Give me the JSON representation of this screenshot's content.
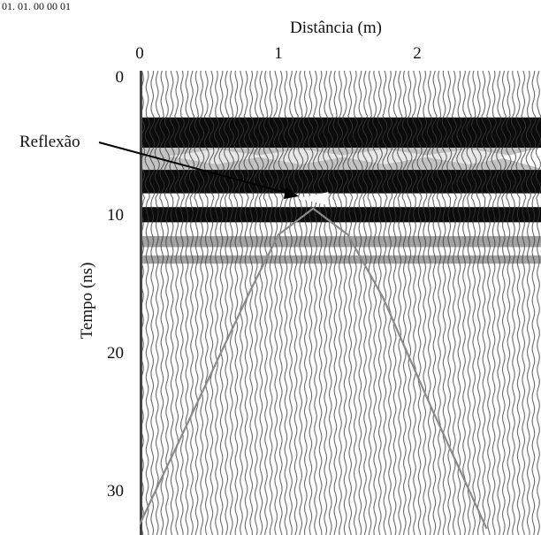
{
  "chart_data": {
    "type": "radargram",
    "xlabel": "Distância (m)",
    "ylabel": "Tempo (ns)",
    "x_ticks": [
      0,
      1,
      2
    ],
    "y_ticks": [
      0,
      10,
      20,
      30
    ],
    "xlim": [
      0,
      2.9
    ],
    "ylim": [
      0,
      33
    ],
    "x_axis_position": "top",
    "reflection_hyperbola": {
      "apex_x_m": 1.25,
      "apex_t_ns": 9.6,
      "points": [
        {
          "x": 0.0,
          "t": 32.5
        },
        {
          "x": 0.4,
          "t": 24.0
        },
        {
          "x": 0.8,
          "t": 15.5
        },
        {
          "x": 1.0,
          "t": 11.5
        },
        {
          "x": 1.25,
          "t": 9.6
        },
        {
          "x": 1.5,
          "t": 11.5
        },
        {
          "x": 1.75,
          "t": 16.0
        },
        {
          "x": 2.1,
          "t": 24.0
        },
        {
          "x": 2.5,
          "t": 32.8
        }
      ]
    },
    "bands": [
      {
        "t_start": 3.0,
        "t_end": 5.2,
        "kind": "direct-wave-dark"
      },
      {
        "t_start": 5.2,
        "t_end": 6.8,
        "kind": "direct-wave-light"
      },
      {
        "t_start": 6.8,
        "t_end": 8.5,
        "kind": "direct-wave-dark"
      },
      {
        "t_start": 9.5,
        "t_end": 10.6,
        "kind": "reflector-dark"
      },
      {
        "t_start": 11.6,
        "t_end": 12.4,
        "kind": "reflector-faint"
      },
      {
        "t_start": 13.0,
        "t_end": 13.6,
        "kind": "reflector-faint"
      }
    ],
    "annotation": {
      "text": "Reflexão",
      "target_x_m": 1.2,
      "target_t_ns": 8.6
    }
  },
  "header_fragment": "01. 01. 00 00 01"
}
